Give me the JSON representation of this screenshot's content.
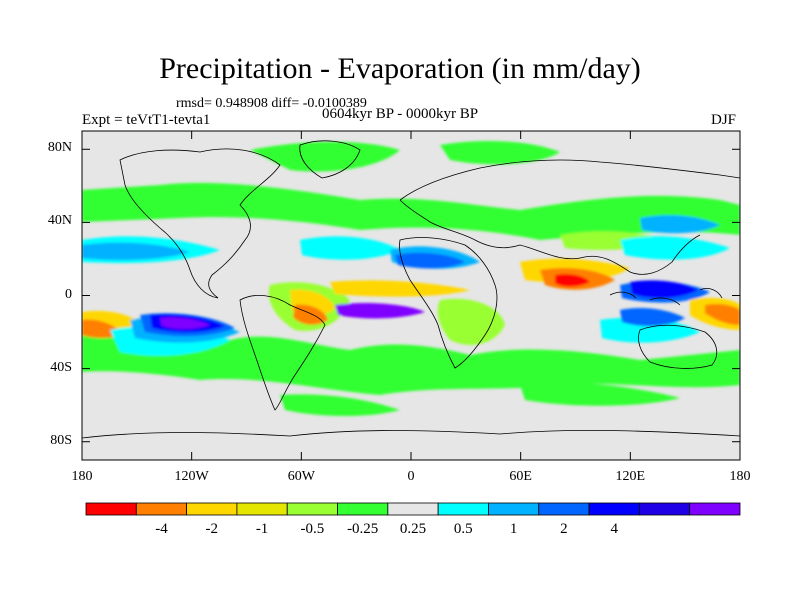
{
  "title": "Precipitation - Evaporation (in mm/day)",
  "stats": "rmsd= 0.948908 diff= -0.0100389",
  "period": "0604kyr BP - 0000kyr BP",
  "experiment": "Expt = teVtT1-tevta1",
  "season": "DJF",
  "map": {
    "background": "#e6e6e6",
    "lat_ticks": [
      "80N",
      "40N",
      "0",
      "40S",
      "80S"
    ],
    "lat_values": [
      80,
      40,
      0,
      -40,
      -80
    ],
    "lon_ticks": [
      "180",
      "120W",
      "60W",
      "0",
      "60E",
      "120E",
      "180"
    ],
    "lon_values": [
      -180,
      -120,
      -60,
      0,
      60,
      120,
      180
    ]
  },
  "colorbar": {
    "colors": [
      "#ff0000",
      "#ff8000",
      "#ffd700",
      "#e5e600",
      "#99ff33",
      "#33ff33",
      "#e6e6e6",
      "#00ffff",
      "#00b2ff",
      "#0066ff",
      "#0000ff",
      "#1f00e6",
      "#8000ff"
    ],
    "labels": [
      "-4",
      "-2",
      "-1",
      "-0.5",
      "-0.25",
      "0.25",
      "0.5",
      "1",
      "2",
      "4"
    ]
  }
}
